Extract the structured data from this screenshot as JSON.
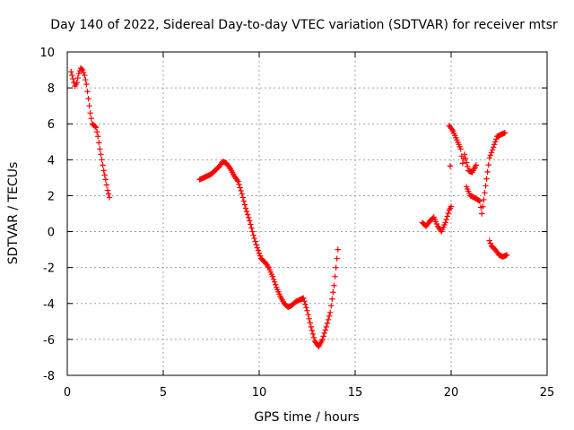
{
  "chart_data": {
    "type": "scatter",
    "title": "Day 140 of 2022, Sidereal Day-to-day VTEC variation (SDTVAR) for receiver mtsr",
    "xlabel": "GPS time / hours",
    "ylabel": "SDTVAR / TECUs",
    "xlim": [
      0,
      25
    ],
    "ylim": [
      -8,
      10
    ],
    "xticks": [
      0,
      5,
      10,
      15,
      20,
      25
    ],
    "yticks": [
      -8,
      -6,
      -4,
      -2,
      0,
      2,
      4,
      6,
      8,
      10
    ],
    "grid": true,
    "marker": "+",
    "color": "#ff0000",
    "series": [
      {
        "name": "SDTVAR",
        "points": [
          [
            0.2,
            8.9
          ],
          [
            0.3,
            8.5
          ],
          [
            0.4,
            8.1
          ],
          [
            0.5,
            8.3
          ],
          [
            0.6,
            8.8
          ],
          [
            0.7,
            9.1
          ],
          [
            0.8,
            9.0
          ],
          [
            0.9,
            8.7
          ],
          [
            1.0,
            8.2
          ],
          [
            1.1,
            7.4
          ],
          [
            1.2,
            6.6
          ],
          [
            1.3,
            6.0
          ],
          [
            1.4,
            5.9
          ],
          [
            1.5,
            5.8
          ],
          [
            1.6,
            5.3
          ],
          [
            1.7,
            4.6
          ],
          [
            1.8,
            4.0
          ],
          [
            1.9,
            3.4
          ],
          [
            2.0,
            2.9
          ],
          [
            2.1,
            2.3
          ],
          [
            2.2,
            1.9
          ],
          [
            6.9,
            2.9
          ],
          [
            7.1,
            3.0
          ],
          [
            7.3,
            3.1
          ],
          [
            7.5,
            3.2
          ],
          [
            7.7,
            3.4
          ],
          [
            7.9,
            3.6
          ],
          [
            8.1,
            3.9
          ],
          [
            8.3,
            3.8
          ],
          [
            8.5,
            3.5
          ],
          [
            8.7,
            3.1
          ],
          [
            8.9,
            2.8
          ],
          [
            9.1,
            2.1
          ],
          [
            9.3,
            1.3
          ],
          [
            9.5,
            0.6
          ],
          [
            9.7,
            -0.2
          ],
          [
            9.9,
            -0.9
          ],
          [
            10.1,
            -1.5
          ],
          [
            10.3,
            -1.7
          ],
          [
            10.5,
            -2.0
          ],
          [
            10.7,
            -2.5
          ],
          [
            10.9,
            -3.1
          ],
          [
            11.1,
            -3.6
          ],
          [
            11.3,
            -4.0
          ],
          [
            11.5,
            -4.2
          ],
          [
            11.7,
            -4.1
          ],
          [
            11.9,
            -3.9
          ],
          [
            12.1,
            -3.8
          ],
          [
            12.3,
            -3.7
          ],
          [
            12.5,
            -4.4
          ],
          [
            12.7,
            -5.3
          ],
          [
            12.9,
            -6.1
          ],
          [
            13.1,
            -6.4
          ],
          [
            13.3,
            -6.0
          ],
          [
            13.5,
            -5.3
          ],
          [
            13.7,
            -4.5
          ],
          [
            13.9,
            -3.0
          ],
          [
            14.0,
            -2.0
          ],
          [
            14.1,
            -1.0
          ],
          [
            18.5,
            0.5
          ],
          [
            18.7,
            0.3
          ],
          [
            18.9,
            0.6
          ],
          [
            19.1,
            0.8
          ],
          [
            19.3,
            0.3
          ],
          [
            19.5,
            0.0
          ],
          [
            19.7,
            0.5
          ],
          [
            19.9,
            1.2
          ],
          [
            20.0,
            1.4
          ],
          [
            19.9,
            5.9
          ],
          [
            20.1,
            5.6
          ],
          [
            20.3,
            5.1
          ],
          [
            20.5,
            4.6
          ],
          [
            20.6,
            3.8
          ],
          [
            20.7,
            4.3
          ],
          [
            20.9,
            3.4
          ],
          [
            21.1,
            3.3
          ],
          [
            21.3,
            3.7
          ],
          [
            20.8,
            2.5
          ],
          [
            21.0,
            2.0
          ],
          [
            21.2,
            1.9
          ],
          [
            21.5,
            1.7
          ],
          [
            21.6,
            1.0
          ],
          [
            22.0,
            4.1
          ],
          [
            22.2,
            4.7
          ],
          [
            22.4,
            5.3
          ],
          [
            22.6,
            5.4
          ],
          [
            22.8,
            5.5
          ],
          [
            22.0,
            -0.5
          ],
          [
            22.1,
            -0.8
          ],
          [
            22.3,
            -1.0
          ],
          [
            22.5,
            -1.3
          ],
          [
            22.7,
            -1.4
          ],
          [
            22.9,
            -1.3
          ]
        ]
      }
    ]
  }
}
